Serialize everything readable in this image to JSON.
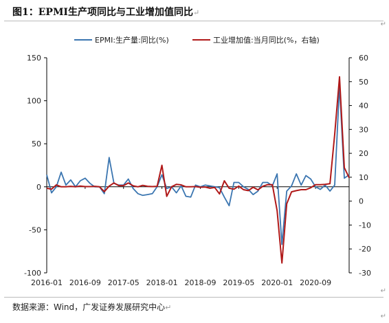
{
  "header": {
    "title": "图1：EPMI生产项同比与工业增加值同比",
    "title_end_mark": "↵"
  },
  "footer": {
    "source": "数据来源：Wind，广发证券发展研究中心",
    "source_end_mark": "↵"
  },
  "side_marks": [
    "↵",
    "↵",
    "↵"
  ],
  "colors": {
    "left_series": "#3a75b0",
    "right_series": "#b01818",
    "axis": "#000000"
  },
  "chart_data": {
    "type": "line",
    "x_tick_labels": [
      "2016-01",
      "2016-09",
      "2017-05",
      "2018-01",
      "2018-09",
      "2019-05",
      "2020-01",
      "2020-09"
    ],
    "x_tick_positions": [
      "2016-01",
      "2016-09",
      "2017-05",
      "2018-01",
      "2018-09",
      "2019-05",
      "2020-01",
      "2020-09"
    ],
    "x_range": [
      "2016-01",
      "2021-04"
    ],
    "y_left": {
      "min": -100,
      "max": 150,
      "ticks": [
        -100,
        -50,
        0,
        50,
        100,
        150
      ]
    },
    "y_right": {
      "min": -30,
      "max": 60,
      "ticks": [
        -30,
        -20,
        -10,
        0,
        10,
        20,
        30,
        40,
        50,
        60
      ]
    },
    "grid": false,
    "legend_position": "top",
    "series": [
      {
        "name": "EPMI:生产量:同比(%)",
        "axis": "left",
        "color": "#3a75b0",
        "x": [
          "2016-01",
          "2016-02",
          "2016-03",
          "2016-04",
          "2016-05",
          "2016-06",
          "2016-07",
          "2016-08",
          "2016-09",
          "2016-10",
          "2016-11",
          "2016-12",
          "2017-01",
          "2017-02",
          "2017-03",
          "2017-04",
          "2017-05",
          "2017-06",
          "2017-07",
          "2017-08",
          "2017-09",
          "2017-10",
          "2017-11",
          "2017-12",
          "2018-01",
          "2018-02",
          "2018-03",
          "2018-04",
          "2018-05",
          "2018-06",
          "2018-07",
          "2018-08",
          "2018-09",
          "2018-10",
          "2018-11",
          "2018-12",
          "2019-01",
          "2019-02",
          "2019-03",
          "2019-04",
          "2019-05",
          "2019-06",
          "2019-07",
          "2019-08",
          "2019-09",
          "2019-10",
          "2019-11",
          "2019-12",
          "2020-01",
          "2020-02",
          "2020-03",
          "2020-04",
          "2020-05",
          "2020-06",
          "2020-07",
          "2020-08",
          "2020-09",
          "2020-10",
          "2020-11",
          "2020-12",
          "2021-01",
          "2021-02",
          "2021-03",
          "2021-04"
        ],
        "values": [
          14,
          -7,
          0,
          17,
          2,
          8,
          0,
          7,
          10,
          4,
          0,
          0,
          -8,
          34,
          4,
          2,
          2,
          9,
          -2,
          -8,
          -10,
          -9,
          -8,
          0,
          14,
          -2,
          0,
          -7,
          1,
          -11,
          -12,
          2,
          0,
          2,
          1,
          0,
          -1,
          -12,
          -22,
          5,
          5,
          0,
          -3,
          -9,
          -5,
          5,
          5,
          1,
          15,
          -67,
          -5,
          1,
          15,
          2,
          13,
          9,
          0,
          -3,
          2,
          -5,
          2,
          118,
          10,
          14
        ]
      },
      {
        "name": "工业增加值:当月同比(%，右轴)",
        "axis": "right",
        "color": "#b01818",
        "x": [
          "2016-01",
          "2016-02",
          "2016-03",
          "2016-04",
          "2016-05",
          "2016-06",
          "2016-07",
          "2016-08",
          "2016-09",
          "2016-10",
          "2016-11",
          "2016-12",
          "2017-01",
          "2017-02",
          "2017-03",
          "2017-04",
          "2017-05",
          "2017-06",
          "2017-07",
          "2017-08",
          "2017-09",
          "2017-10",
          "2017-11",
          "2017-12",
          "2018-01",
          "2018-02",
          "2018-03",
          "2018-04",
          "2018-05",
          "2018-06",
          "2018-07",
          "2018-08",
          "2018-09",
          "2018-10",
          "2018-11",
          "2018-12",
          "2019-01",
          "2019-02",
          "2019-03",
          "2019-04",
          "2019-05",
          "2019-06",
          "2019-07",
          "2019-08",
          "2019-09",
          "2019-10",
          "2019-11",
          "2019-12",
          "2020-01",
          "2020-02",
          "2020-03",
          "2020-04",
          "2020-05",
          "2020-06",
          "2020-07",
          "2020-08",
          "2020-09",
          "2020-10",
          "2020-11",
          "2020-12",
          "2021-01",
          "2021-02",
          "2021-03",
          "2021-04"
        ],
        "values": [
          5.4,
          5.0,
          6.8,
          6.0,
          6.0,
          6.2,
          6.0,
          6.3,
          6.1,
          6.1,
          6.2,
          6.0,
          4.0,
          6.3,
          7.6,
          6.5,
          6.5,
          7.6,
          6.4,
          6.0,
          6.6,
          6.2,
          6.1,
          6.2,
          15.0,
          2.0,
          6.0,
          7.0,
          6.8,
          6.0,
          6.0,
          6.1,
          5.8,
          5.9,
          5.4,
          5.7,
          3.0,
          8.5,
          5.4,
          5.0,
          6.3,
          4.8,
          4.4,
          5.8,
          4.7,
          6.2,
          6.9,
          6.9,
          -4.0,
          -25.9,
          -1.1,
          3.9,
          4.4,
          4.8,
          4.8,
          5.6,
          6.9,
          6.9,
          7.0,
          7.3,
          28.0,
          52.0,
          14.0,
          9.8
        ]
      }
    ]
  }
}
